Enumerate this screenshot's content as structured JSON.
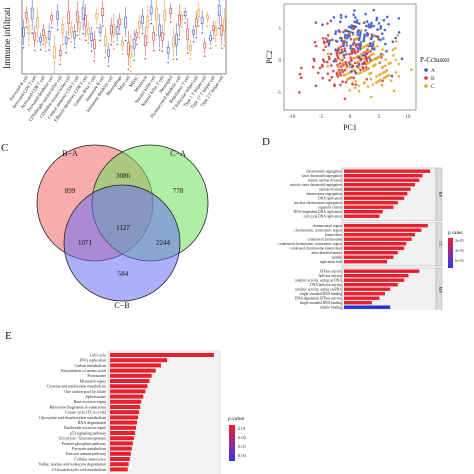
{
  "panels": {
    "c_label": "C",
    "d_label": "D",
    "e_label": "E"
  },
  "chart_data": [
    {
      "type": "box",
      "id": "immune-boxplot",
      "ylabel": "Immune infiltrati",
      "categories": [
        "Activated B cell",
        "Activated CD4 T cell",
        "Activated CD8 T cell",
        "Activated dendritic cell",
        "CD56bright natural killer cell",
        "CD56dim natural killer cell",
        "Central memory CD4 T cell",
        "Effector memeory CD8 T cell",
        "Gamma delta T cell",
        "Immature B cell",
        "Immature dendritic cell",
        "Macrophage",
        "Mast cell",
        "MDSC",
        "Monocyte",
        "Natural killer cell",
        "Natural killer T cell",
        "Neutrophil",
        "Plasmacytoid dendritic cell",
        "Regulatory T cell",
        "T follicular helper cell",
        "Type 1 T helper cell",
        "Type 17 T helper cell",
        "Type 2 T helper cell"
      ],
      "series_colors": [
        "#3a58c8",
        "#d63b3b",
        "#e8902a"
      ]
    },
    {
      "type": "scatter",
      "id": "pca-scatter",
      "xlabel": "PC1",
      "ylabel": "PC2",
      "x_ticks": [
        "-10",
        "-5",
        "0",
        "5",
        "10"
      ],
      "y_ticks": [
        "-5",
        "0",
        "5"
      ],
      "legend_title": "P-Ccluster",
      "legend_position": "right",
      "series": [
        {
          "name": "A",
          "color": "#3a58c8"
        },
        {
          "name": "B",
          "color": "#d63b3b"
        },
        {
          "name": "C",
          "color": "#e8a52a"
        }
      ]
    },
    {
      "type": "venn",
      "id": "venn",
      "sets": [
        {
          "name": "B−A",
          "color": "#f26a6a"
        },
        {
          "name": "C−A",
          "color": "#6fe05c"
        },
        {
          "name": "C−B",
          "color": "#6a6ef2"
        }
      ],
      "regions": {
        "b_a_only": "899",
        "c_a_only": "778",
        "c_b_only": "584",
        "ba_ca": "3086",
        "ba_cb": "1071",
        "ca_cb": "2244",
        "all": "1127"
      }
    },
    {
      "type": "bar",
      "id": "go-bar",
      "orientation": "horizontal",
      "x_ticks": [
        "0",
        "25",
        "50",
        "75"
      ],
      "legend_title": "p.value",
      "legend_ticks": [
        "2e-05",
        "4e-05",
        "6e-05"
      ],
      "groups": [
        {
          "name": "BP",
          "terms": [
            "chromosome segregation",
            "sister chromatid segregation",
            "mitotic nuclear division",
            "mitotic sister chromatid segregation",
            "nuclear division",
            "chromosome segregation",
            "DNA replication",
            "nuclear chromosome segregation",
            "organelle fission",
            "DNA-dependent DNA replication",
            "cell cycle DNA replication"
          ],
          "values": [
            80,
            73,
            70,
            66,
            62,
            59,
            56,
            50,
            46,
            36,
            33
          ]
        },
        {
          "name": "CC",
          "terms": [
            "chromosomal region",
            "chromosome, centromeric region",
            "kinetochore",
            "condensed chromosome",
            "condensed chromosome, centromeric region",
            "condensed chromosome kinetochore",
            "mitochondrial matrix",
            "spindle",
            "replication fork"
          ],
          "values": [
            78,
            72,
            66,
            63,
            58,
            56,
            50,
            46,
            40
          ]
        },
        {
          "name": "MF",
          "terms": [
            "ATPase activity",
            "helicase activity",
            "catalytic activity, acting on DNA",
            "DNA helicase activity",
            "catalytic activity, acting on RNA",
            "single-stranded DNA binding",
            "DNA-dependent ATPase activity",
            "single-stranded RNA binding",
            "tubulin binding"
          ],
          "values": [
            70,
            60,
            56,
            50,
            43,
            38,
            33,
            26,
            43
          ]
        }
      ]
    },
    {
      "type": "bar",
      "id": "kegg-bar",
      "orientation": "horizontal",
      "legend_title": "p.value",
      "legend_ticks": [
        "0.01",
        "0.02",
        "0.03",
        "0.04"
      ],
      "terms": [
        "Cell cycle",
        "DNA replication",
        "Carbon metabolism",
        "Biosynthesis of amino acids",
        "Proteasome",
        "Mismatch repair",
        "Cysteine and methionine metabolism",
        "One carbon pool by folate",
        "Spliceosome",
        "Base excision repair",
        "Ribosome biogenesis in eukaryotes",
        "Citrate cycle (TCA cycle)",
        "Glyoxylate and dicarboxylate metabolism",
        "RNA degradation",
        "Nucleotide excision repair",
        "p53 signaling pathway",
        "Glycolysis / Gluconeogenesis",
        "Pentose phosphate pathway",
        "Pyruvate metabolism",
        "Fanconi anemia pathway",
        "Cellular senescence",
        "Valine, leucine and isoleucine degradation",
        "2-Oxocarboxylic acid metabolism"
      ],
      "values": [
        100,
        55,
        49,
        44,
        40,
        38,
        36,
        34,
        32,
        30,
        29,
        28,
        27,
        26,
        25,
        24,
        23,
        22,
        21,
        20,
        19,
        18,
        17
      ]
    }
  ]
}
